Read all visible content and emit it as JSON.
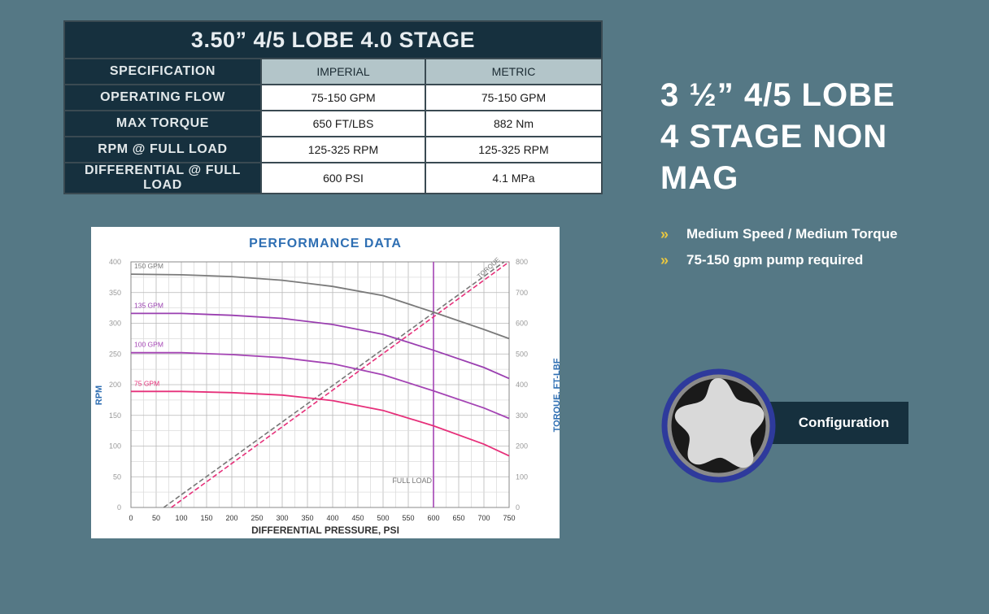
{
  "table": {
    "title": "3.50” 4/5 LOBE  4.0 STAGE",
    "header_label": "SPECIFICATION",
    "columns": [
      "IMPERIAL",
      "METRIC"
    ],
    "rows": [
      {
        "label": "OPERATING FLOW",
        "imperial": "75-150 GPM",
        "metric": "75-150 GPM"
      },
      {
        "label": "MAX TORQUE",
        "imperial": "650 FT/LBS",
        "metric": "882 Nm"
      },
      {
        "label": "RPM @ FULL LOAD",
        "imperial": "125-325 RPM",
        "metric": "125-325 RPM"
      },
      {
        "label": "DIFFERENTIAL @ FULL LOAD",
        "imperial": "600 PSI",
        "metric": "4.1 MPa"
      }
    ]
  },
  "hero": {
    "line1": "3 ½” 4/5 LOBE",
    "line2": "4 STAGE NON",
    "line3": "MAG"
  },
  "bullets": [
    {
      "icon": "»",
      "text": "Medium Speed / Medium Torque"
    },
    {
      "icon": "»",
      "text": "75-150 gpm pump required"
    }
  ],
  "config": {
    "label": "Configuration"
  },
  "colors": {
    "background": "#557885",
    "navy": "#16303e",
    "accent": "#e8c640",
    "header_col": "#b3c5c9",
    "ring": "#2e3a9c"
  },
  "chart_data": {
    "type": "line",
    "title": "PERFORMANCE DATA",
    "xlabel": "DIFFERENTIAL PRESSURE, PSI",
    "ylabel": "RPM",
    "y2label": "TORQUE, FT-LBF",
    "xlim": [
      0,
      750
    ],
    "ylim": [
      0,
      400
    ],
    "y2lim": [
      0,
      800
    ],
    "xticks": [
      0,
      50,
      100,
      150,
      200,
      250,
      300,
      350,
      400,
      450,
      500,
      550,
      600,
      650,
      700,
      750
    ],
    "yticks": [
      0,
      50,
      100,
      150,
      200,
      250,
      300,
      350,
      400
    ],
    "y2ticks": [
      0,
      100,
      200,
      300,
      400,
      500,
      600,
      700,
      800
    ],
    "grid": true,
    "series": [
      {
        "name": "150 GPM",
        "color": "#7a7a7a",
        "x": [
          0,
          100,
          200,
          300,
          400,
          500,
          600,
          700,
          750
        ],
        "y": [
          380,
          379,
          376,
          370,
          360,
          345,
          318,
          290,
          275
        ]
      },
      {
        "name": "135 GPM",
        "color": "#9a3fb0",
        "x": [
          0,
          100,
          200,
          300,
          400,
          500,
          600,
          700,
          750
        ],
        "y": [
          316,
          316,
          313,
          308,
          298,
          282,
          256,
          228,
          210
        ]
      },
      {
        "name": "100 GPM",
        "color": "#a444b4",
        "x": [
          0,
          100,
          200,
          300,
          400,
          500,
          600,
          700,
          750
        ],
        "y": [
          252,
          252,
          249,
          244,
          234,
          216,
          190,
          162,
          145
        ]
      },
      {
        "name": "75 GPM",
        "color": "#e6307a",
        "x": [
          0,
          100,
          200,
          300,
          400,
          500,
          600,
          700,
          750
        ],
        "y": [
          189,
          189,
          187,
          183,
          174,
          158,
          133,
          103,
          84
        ]
      }
    ],
    "torque": {
      "label": "TORQUE",
      "x": [
        80,
        750
      ],
      "y2": [
        0,
        800
      ],
      "offset_x": [
        65,
        740
      ]
    },
    "full_load": {
      "label": "FULL LOAD",
      "x": 600
    }
  }
}
